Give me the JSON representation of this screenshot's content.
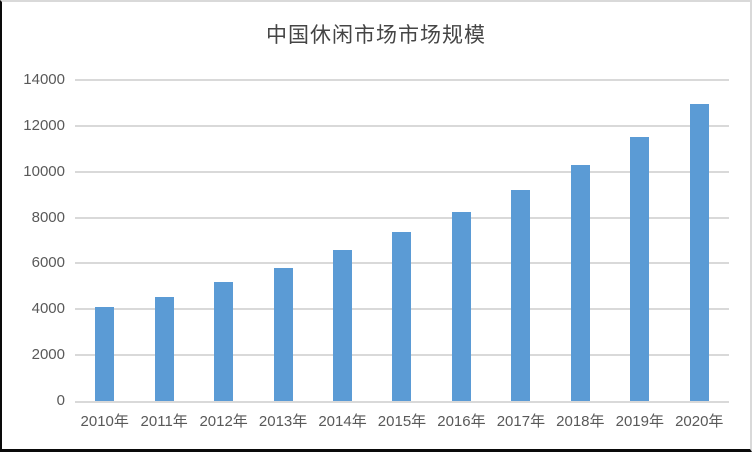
{
  "chart_data": {
    "type": "bar",
    "title": "中国休闲市场市场规模",
    "categories": [
      "2010年",
      "2011年",
      "2012年",
      "2013年",
      "2014年",
      "2015年",
      "2016年",
      "2017年",
      "2018年",
      "2019年",
      "2020年"
    ],
    "values": [
      4100,
      4550,
      5200,
      5800,
      6600,
      7350,
      8250,
      9200,
      10300,
      11500,
      12950
    ],
    "xlabel": "",
    "ylabel": "",
    "ylim": [
      0,
      14000
    ],
    "yticks": [
      0,
      2000,
      4000,
      6000,
      8000,
      10000,
      12000,
      14000
    ],
    "grid": true,
    "legend_position": "none",
    "bar_color": "#5b9bd5",
    "gridline_color": "#d9d9d9",
    "axis_label_color": "#595959",
    "title_color": "#454545"
  }
}
